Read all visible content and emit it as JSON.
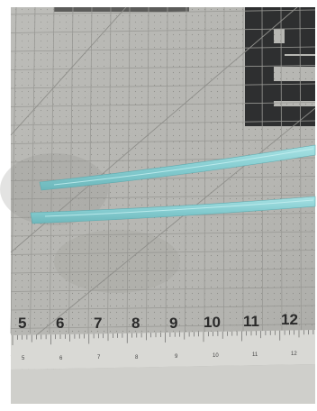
{
  "photo": {
    "subject": "photo",
    "colors": {
      "mat": "#b8b8b4",
      "mat_line": "#9a9a96",
      "mat_dark_square": "#2f3031",
      "ruler": "#d8d8d4",
      "ruler_tick": "#5a5a5a",
      "strip": "#8fd3d6",
      "strip_edge": "#6fb7bb",
      "border": "#ffffff"
    },
    "mat_numbers": [
      "5",
      "6",
      "7",
      "8",
      "9",
      "10",
      "11",
      "12"
    ],
    "ruler_numbers": [
      "5",
      "6",
      "7",
      "8",
      "9",
      "10",
      "11",
      "12"
    ]
  }
}
